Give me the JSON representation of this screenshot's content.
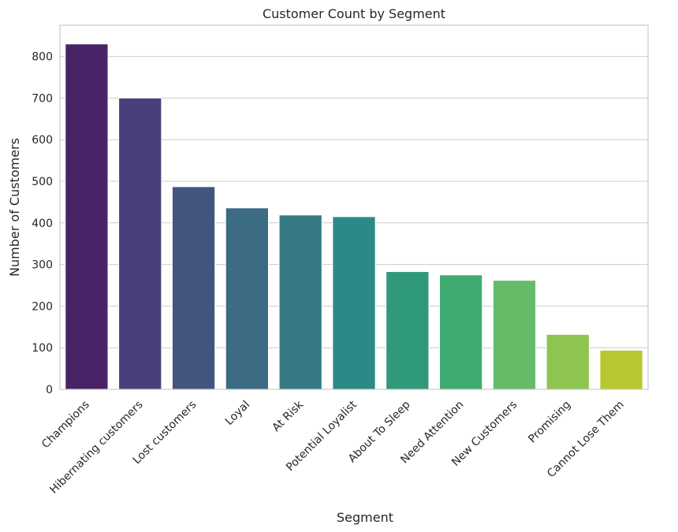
{
  "chart_data": {
    "type": "bar",
    "title": "Customer Count by Segment",
    "xlabel": "Segment",
    "ylabel": "Number of Customers",
    "categories": [
      "Champions",
      "Hibernating customers",
      "Lost customers",
      "Loyal",
      "At Risk",
      "Potential Loyalist",
      "About To Sleep",
      "Need Attention",
      "New Customers",
      "Promising",
      "Cannot Lose Them"
    ],
    "values": [
      830,
      700,
      487,
      436,
      419,
      415,
      283,
      275,
      262,
      132,
      94
    ],
    "colors": [
      "#482466",
      "#4a3f7a",
      "#42557f",
      "#3c6b84",
      "#357a85",
      "#2b8a86",
      "#30987b",
      "#3fab73",
      "#66bb69",
      "#8dc550",
      "#b8c72f"
    ],
    "ylim": [
      0,
      875
    ],
    "yticks": [
      0,
      100,
      200,
      300,
      400,
      500,
      600,
      700,
      800
    ],
    "grid": true,
    "legend": "none"
  }
}
